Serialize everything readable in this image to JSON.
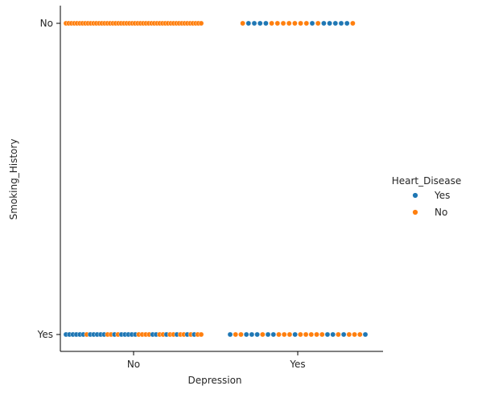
{
  "chart_data": {
    "type": "scatter",
    "style": "swarm",
    "title": "",
    "xlabel": "Depression",
    "ylabel": "Smoking_History",
    "x_categories": [
      "No",
      "Yes"
    ],
    "y_categories": [
      "Yes",
      "No"
    ],
    "grid": false,
    "legend": {
      "title": "Heart_Disease",
      "placement": "right",
      "entries": [
        {
          "label": "Yes",
          "color": "#1f77b4"
        },
        {
          "label": "No",
          "color": "#ff7f0e"
        }
      ]
    },
    "groups": [
      {
        "x": "No",
        "y": "No",
        "points": [
          "No",
          "No",
          "No",
          "No",
          "No",
          "No",
          "No",
          "No",
          "No",
          "No",
          "No",
          "No",
          "No",
          "No",
          "No",
          "No",
          "No",
          "No",
          "No",
          "No",
          "No",
          "No",
          "No",
          "No",
          "No",
          "No",
          "No",
          "No",
          "No",
          "No",
          "No",
          "No",
          "No",
          "No",
          "No",
          "No",
          "No",
          "No",
          "No",
          "No",
          "No",
          "No",
          "No",
          "No",
          "No",
          "No",
          "No",
          "No",
          "No",
          "No"
        ]
      },
      {
        "x": "Yes",
        "y": "No",
        "points": [
          "No",
          "Yes",
          "Yes",
          "Yes",
          "Yes",
          "No",
          "No",
          "No",
          "No",
          "No",
          "No",
          "No",
          "Yes",
          "No",
          "Yes",
          "Yes",
          "Yes",
          "Yes",
          "Yes",
          "No"
        ]
      },
      {
        "x": "No",
        "y": "Yes",
        "points": [
          "Yes",
          "Yes",
          "Yes",
          "Yes",
          "Yes",
          "Yes",
          "No",
          "Yes",
          "Yes",
          "Yes",
          "Yes",
          "Yes",
          "No",
          "No",
          "Yes",
          "No",
          "Yes",
          "Yes",
          "Yes",
          "Yes",
          "Yes",
          "No",
          "No",
          "No",
          "No",
          "Yes",
          "Yes",
          "No",
          "No",
          "Yes",
          "No",
          "No",
          "Yes",
          "No",
          "No",
          "Yes",
          "No",
          "Yes",
          "No",
          "No"
        ]
      },
      {
        "x": "Yes",
        "y": "Yes",
        "points": [
          "Yes",
          "No",
          "No",
          "Yes",
          "Yes",
          "Yes",
          "No",
          "Yes",
          "Yes",
          "No",
          "No",
          "No",
          "Yes",
          "No",
          "No",
          "No",
          "No",
          "No",
          "Yes",
          "Yes",
          "No",
          "Yes",
          "No",
          "No",
          "No",
          "Yes"
        ]
      }
    ]
  }
}
